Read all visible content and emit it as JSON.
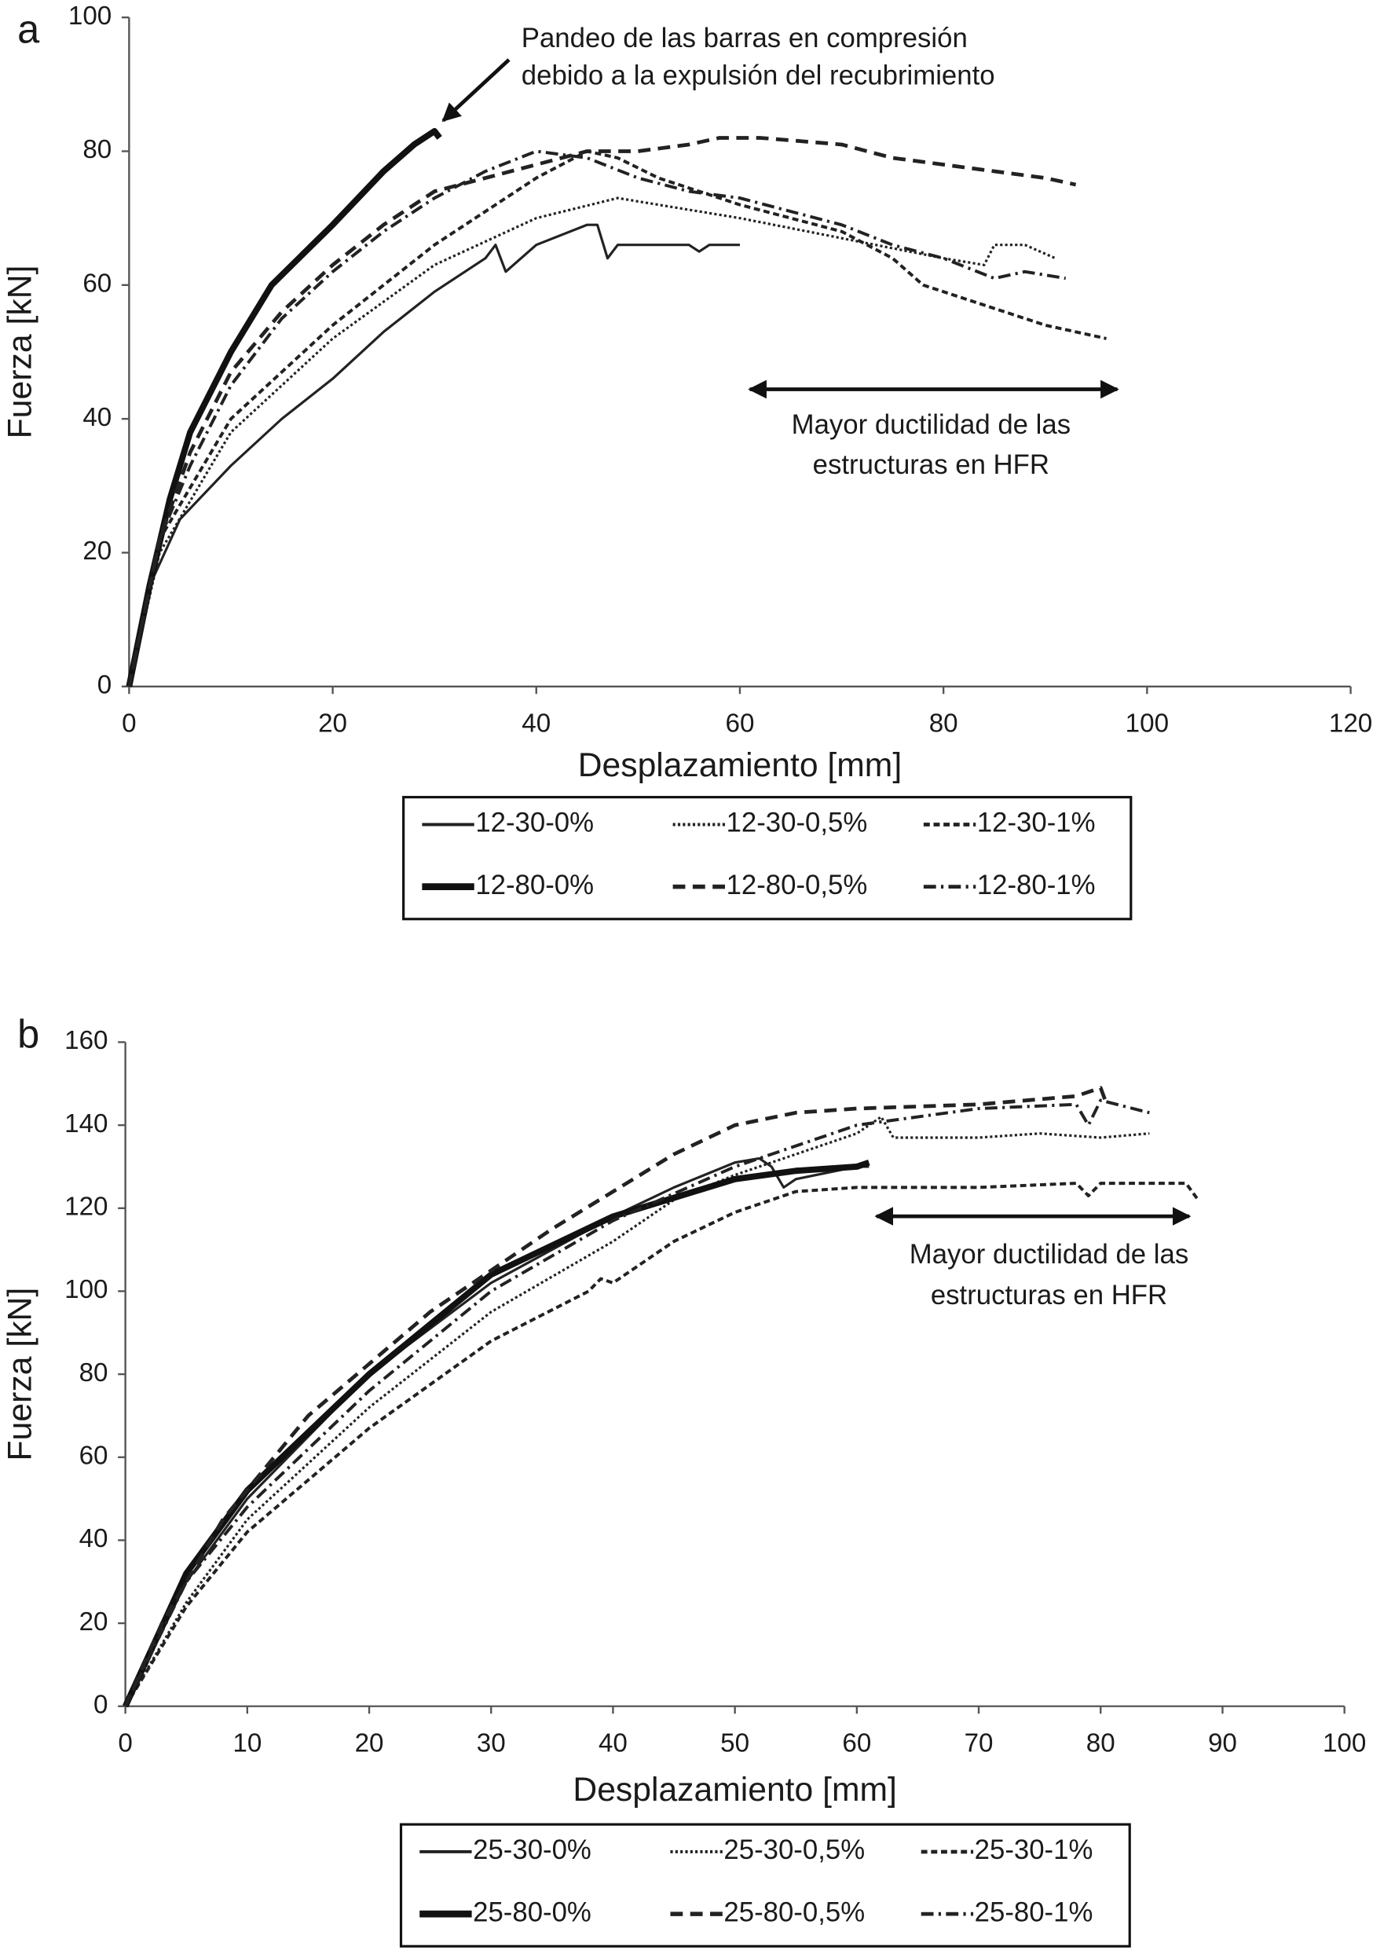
{
  "chart_data": [
    {
      "type": "line",
      "panel_label": "a",
      "x_label": "Desplazamiento [mm]",
      "y_label": "Fuerza [kN]",
      "xlim": [
        0,
        120
      ],
      "xticks": [
        0,
        20,
        40,
        60,
        80,
        100,
        120
      ],
      "ylim": [
        0,
        100
      ],
      "yticks": [
        0,
        20,
        40,
        60,
        80,
        100
      ],
      "grid": false,
      "annotations": [
        [
          "Pandeo de las barras en compresión",
          "debido a la expulsión del recubrimiento"
        ],
        [
          "Mayor ductilidad de las",
          "estructuras en HFR"
        ]
      ],
      "series": [
        {
          "name": "12-30-0%",
          "color": "#222222",
          "style": "solid",
          "x": [
            0,
            2,
            5,
            10,
            15,
            20,
            25,
            30,
            35,
            36,
            37,
            40,
            45,
            46,
            47,
            48,
            55,
            56,
            57,
            60
          ],
          "values": [
            0,
            15,
            25,
            33,
            40,
            46,
            53,
            59,
            64,
            66,
            62,
            66,
            69,
            69,
            64,
            66,
            66,
            65,
            66,
            66
          ]
        },
        {
          "name": "12-30-0,5%",
          "color": "#222222",
          "style": "dotted",
          "x": [
            0,
            3,
            10,
            20,
            30,
            40,
            48,
            52,
            60,
            70,
            80,
            84,
            85,
            88,
            91
          ],
          "values": [
            0,
            20,
            38,
            52,
            63,
            70,
            73,
            72,
            70,
            67,
            64,
            63,
            66,
            66,
            64
          ]
        },
        {
          "name": "12-30-1%",
          "color": "#222222",
          "style": "dashed-short",
          "x": [
            0,
            3,
            10,
            20,
            30,
            36,
            40,
            45,
            48,
            52,
            60,
            65,
            70,
            75,
            78,
            82,
            86,
            90,
            96
          ],
          "values": [
            0,
            22,
            40,
            54,
            66,
            72,
            76,
            80,
            79,
            76,
            72,
            70,
            68,
            64,
            60,
            58,
            56,
            54,
            52
          ]
        },
        {
          "name": "12-80-0%",
          "color": "#111111",
          "style": "bold",
          "x": [
            0,
            2,
            4,
            6,
            10,
            14,
            20,
            25,
            28,
            30,
            30.5
          ],
          "values": [
            0,
            15,
            28,
            38,
            50,
            60,
            69,
            77,
            81,
            83,
            82
          ]
        },
        {
          "name": "12-80-0,5%",
          "color": "#222222",
          "style": "dashed",
          "x": [
            0,
            3,
            6,
            10,
            15,
            20,
            25,
            30,
            35,
            40,
            45,
            50,
            55,
            58,
            62,
            70,
            75,
            80,
            85,
            90,
            93
          ],
          "values": [
            0,
            22,
            35,
            47,
            56,
            63,
            69,
            74,
            76,
            78,
            80,
            80,
            81,
            82,
            82,
            81,
            79,
            78,
            77,
            76,
            75
          ]
        },
        {
          "name": "12-80-1%",
          "color": "#222222",
          "style": "dashdot",
          "x": [
            0,
            3,
            6,
            10,
            15,
            20,
            25,
            30,
            35,
            40,
            45,
            50,
            55,
            60,
            65,
            70,
            75,
            80,
            85,
            88,
            92
          ],
          "values": [
            0,
            22,
            33,
            45,
            55,
            62,
            68,
            73,
            77,
            80,
            79,
            76,
            74,
            73,
            71,
            69,
            66,
            64,
            61,
            62,
            61
          ]
        }
      ]
    },
    {
      "type": "line",
      "panel_label": "b",
      "x_label": "Desplazamiento [mm]",
      "y_label": "Fuerza [kN]",
      "xlim": [
        0,
        100
      ],
      "xticks": [
        0,
        10,
        20,
        30,
        40,
        50,
        60,
        70,
        80,
        90,
        100
      ],
      "ylim": [
        0,
        160
      ],
      "yticks": [
        0,
        20,
        40,
        60,
        80,
        100,
        120,
        140,
        160
      ],
      "grid": false,
      "annotations": [
        [
          "Mayor ductilidad de las",
          "estructuras en HFR"
        ]
      ],
      "series": [
        {
          "name": "25-30-0%",
          "color": "#222222",
          "style": "solid",
          "x": [
            0,
            5,
            10,
            20,
            30,
            40,
            45,
            50,
            52,
            53,
            54,
            55,
            60,
            61
          ],
          "values": [
            0,
            30,
            50,
            80,
            102,
            118,
            125,
            131,
            132,
            130,
            125,
            127,
            130,
            130
          ]
        },
        {
          "name": "25-30-0,5%",
          "color": "#222222",
          "style": "dotted",
          "x": [
            0,
            5,
            10,
            20,
            30,
            40,
            45,
            50,
            55,
            60,
            62,
            63,
            70,
            75,
            80,
            84
          ],
          "values": [
            0,
            25,
            45,
            72,
            95,
            112,
            122,
            128,
            133,
            138,
            142,
            137,
            137,
            138,
            137,
            138
          ]
        },
        {
          "name": "25-30-1%",
          "color": "#222222",
          "style": "dashed-short",
          "x": [
            0,
            5,
            10,
            20,
            30,
            38,
            39,
            40,
            45,
            50,
            55,
            60,
            70,
            78,
            79,
            80,
            87,
            88
          ],
          "values": [
            0,
            24,
            42,
            67,
            88,
            100,
            103,
            102,
            112,
            119,
            124,
            125,
            125,
            126,
            123,
            126,
            126,
            122
          ]
        },
        {
          "name": "25-80-0%",
          "color": "#111111",
          "style": "bold",
          "x": [
            0,
            5,
            10,
            20,
            30,
            40,
            50,
            55,
            60,
            61
          ],
          "values": [
            0,
            32,
            52,
            80,
            104,
            118,
            127,
            129,
            130,
            131
          ]
        },
        {
          "name": "25-80-0,5%",
          "color": "#222222",
          "style": "dashed",
          "x": [
            0,
            3,
            8,
            15,
            25,
            35,
            40,
            45,
            50,
            55,
            60,
            70,
            78,
            80,
            80.5
          ],
          "values": [
            0,
            20,
            45,
            70,
            95,
            115,
            124,
            133,
            140,
            143,
            144,
            145,
            147,
            149,
            145
          ]
        },
        {
          "name": "25-80-1%",
          "color": "#222222",
          "style": "dashdot",
          "x": [
            0,
            5,
            10,
            20,
            30,
            40,
            50,
            60,
            70,
            78,
            79,
            80,
            84
          ],
          "values": [
            0,
            30,
            48,
            76,
            100,
            117,
            130,
            140,
            144,
            145,
            140,
            146,
            143
          ]
        }
      ]
    }
  ]
}
